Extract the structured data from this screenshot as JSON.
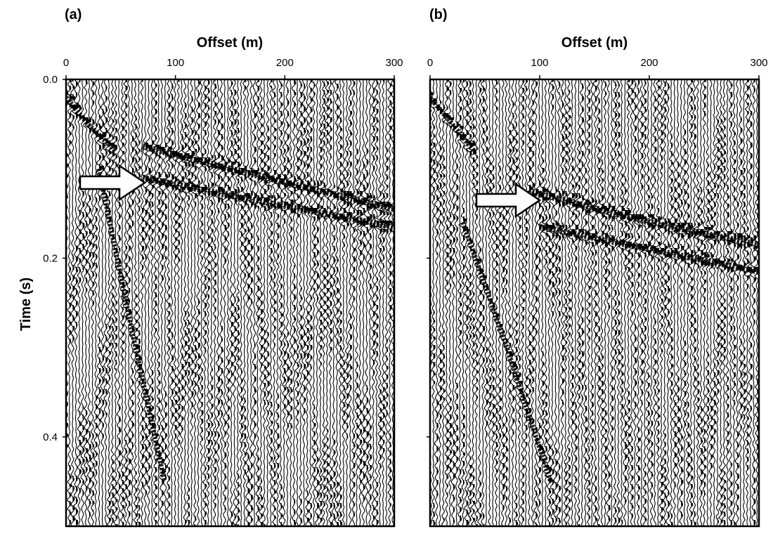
{
  "chart_data": [
    {
      "type": "heatmap",
      "panel_label": "(a)",
      "xlabel": "Offset (m)",
      "ylabel": "Time (s)",
      "xlim": [
        0,
        300
      ],
      "ylim": [
        0,
        0.5
      ],
      "x_ticks": [
        0,
        100,
        200,
        300
      ],
      "y_ticks": [
        0.0,
        0.2,
        0.4
      ],
      "y_tick_labels": [
        "0.0",
        "0.2",
        "0.4"
      ],
      "y_inverted": true,
      "colors": [
        "#000000",
        "#ffffff"
      ],
      "events": [
        {
          "kind": "direct-arrival",
          "points": [
            [
              0,
              0.02
            ],
            [
              20,
              0.05
            ],
            [
              45,
              0.08
            ]
          ]
        },
        {
          "kind": "reflection",
          "points": [
            [
              70,
              0.075
            ],
            [
              150,
              0.1
            ],
            [
              300,
              0.145
            ]
          ]
        },
        {
          "kind": "reflection",
          "points": [
            [
              70,
              0.11
            ],
            [
              150,
              0.13
            ],
            [
              300,
              0.165
            ]
          ]
        },
        {
          "kind": "surface-wave",
          "points": [
            [
              30,
              0.1
            ],
            [
              60,
              0.28
            ],
            [
              90,
              0.45
            ]
          ]
        }
      ],
      "annotations": [
        {
          "kind": "arrow",
          "points_to": [
            70,
            0.11
          ]
        }
      ]
    },
    {
      "type": "heatmap",
      "panel_label": "(b)",
      "xlabel": "Offset (m)",
      "ylabel": "",
      "xlim": [
        0,
        300
      ],
      "ylim": [
        0,
        0.5
      ],
      "x_ticks": [
        0,
        100,
        200,
        300
      ],
      "y_ticks": [
        0.2,
        0.4
      ],
      "y_tick_labels": [
        "",
        ""
      ],
      "y_inverted": true,
      "colors": [
        "#000000",
        "#ffffff"
      ],
      "events": [
        {
          "kind": "direct-arrival",
          "points": [
            [
              0,
              0.02
            ],
            [
              20,
              0.05
            ],
            [
              40,
              0.08
            ]
          ]
        },
        {
          "kind": "reflection",
          "points": [
            [
              90,
              0.125
            ],
            [
              200,
              0.16
            ],
            [
              300,
              0.185
            ]
          ]
        },
        {
          "kind": "reflection",
          "points": [
            [
              100,
              0.165
            ],
            [
              200,
              0.19
            ],
            [
              300,
              0.215
            ]
          ]
        },
        {
          "kind": "surface-wave",
          "points": [
            [
              30,
              0.16
            ],
            [
              70,
              0.3
            ],
            [
              110,
              0.45
            ]
          ]
        }
      ],
      "annotations": [
        {
          "kind": "arrow",
          "points_to": [
            100,
            0.13
          ]
        }
      ]
    }
  ]
}
